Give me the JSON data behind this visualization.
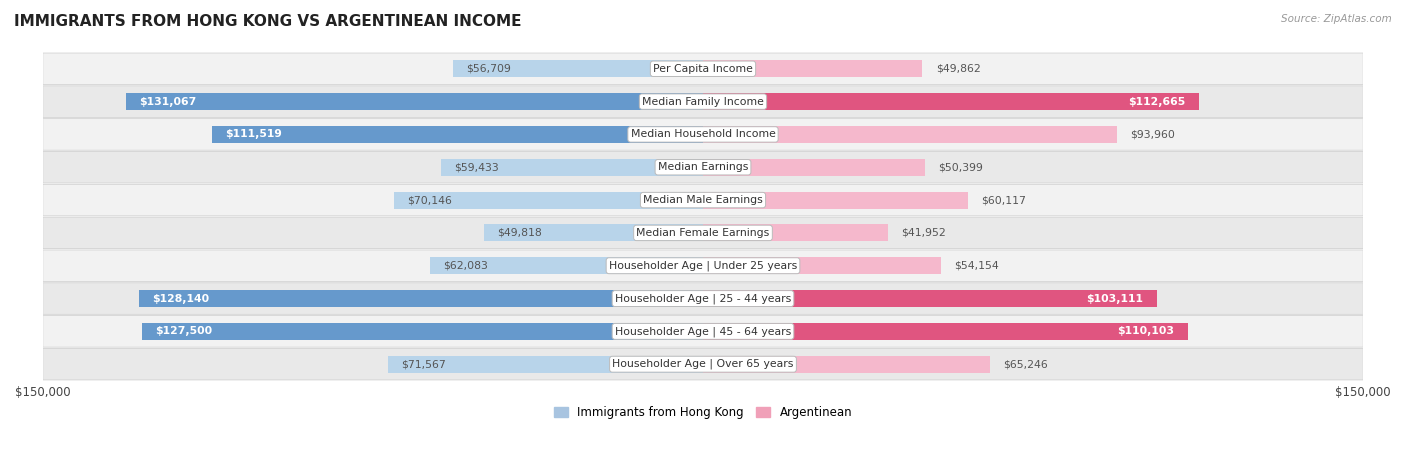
{
  "title": "IMMIGRANTS FROM HONG KONG VS ARGENTINEAN INCOME",
  "source": "Source: ZipAtlas.com",
  "categories": [
    "Per Capita Income",
    "Median Family Income",
    "Median Household Income",
    "Median Earnings",
    "Median Male Earnings",
    "Median Female Earnings",
    "Householder Age | Under 25 years",
    "Householder Age | 25 - 44 years",
    "Householder Age | 45 - 64 years",
    "Householder Age | Over 65 years"
  ],
  "hk_values": [
    56709,
    131067,
    111519,
    59433,
    70146,
    49818,
    62083,
    128140,
    127500,
    71567
  ],
  "arg_values": [
    49862,
    112665,
    93960,
    50399,
    60117,
    41952,
    54154,
    103111,
    110103,
    65246
  ],
  "max_val": 150000,
  "hk_color_light": "#b8d4ea",
  "hk_color_dark": "#6699cc",
  "arg_color_light": "#f5b8cc",
  "arg_color_dark": "#e05580",
  "row_bg_odd": "#f0f0f0",
  "row_bg_even": "#e8e8e8",
  "row_border": "#d0d0d0",
  "bar_height": 0.52,
  "hk_inside_threshold": 100000,
  "arg_inside_threshold": 100000,
  "legend_hk_color": "#a8c4e0",
  "legend_arg_color": "#f0a0b8",
  "val_fontsize": 7.8,
  "cat_fontsize": 7.8
}
